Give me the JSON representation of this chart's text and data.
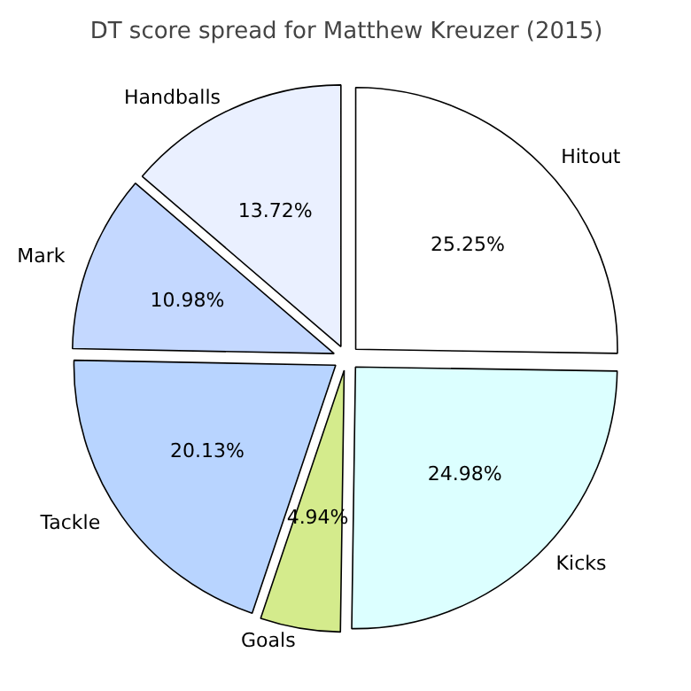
{
  "chart_data": {
    "type": "pie",
    "title": "DT score spread for Matthew Kreuzer (2015)",
    "categories": [
      "Hitout",
      "Kicks",
      "Goals",
      "Tackle",
      "Mark",
      "Handballs"
    ],
    "values": [
      25.25,
      24.98,
      4.94,
      20.13,
      10.98,
      13.72
    ],
    "colors": [
      "#ffffff",
      "#dcffff",
      "#d4eb8c",
      "#b8d4ff",
      "#c4d8ff",
      "#eaf0ff"
    ],
    "value_labels": [
      "25.25%",
      "24.98%",
      "4.94%",
      "20.13%",
      "10.98%",
      "13.72%"
    ]
  }
}
